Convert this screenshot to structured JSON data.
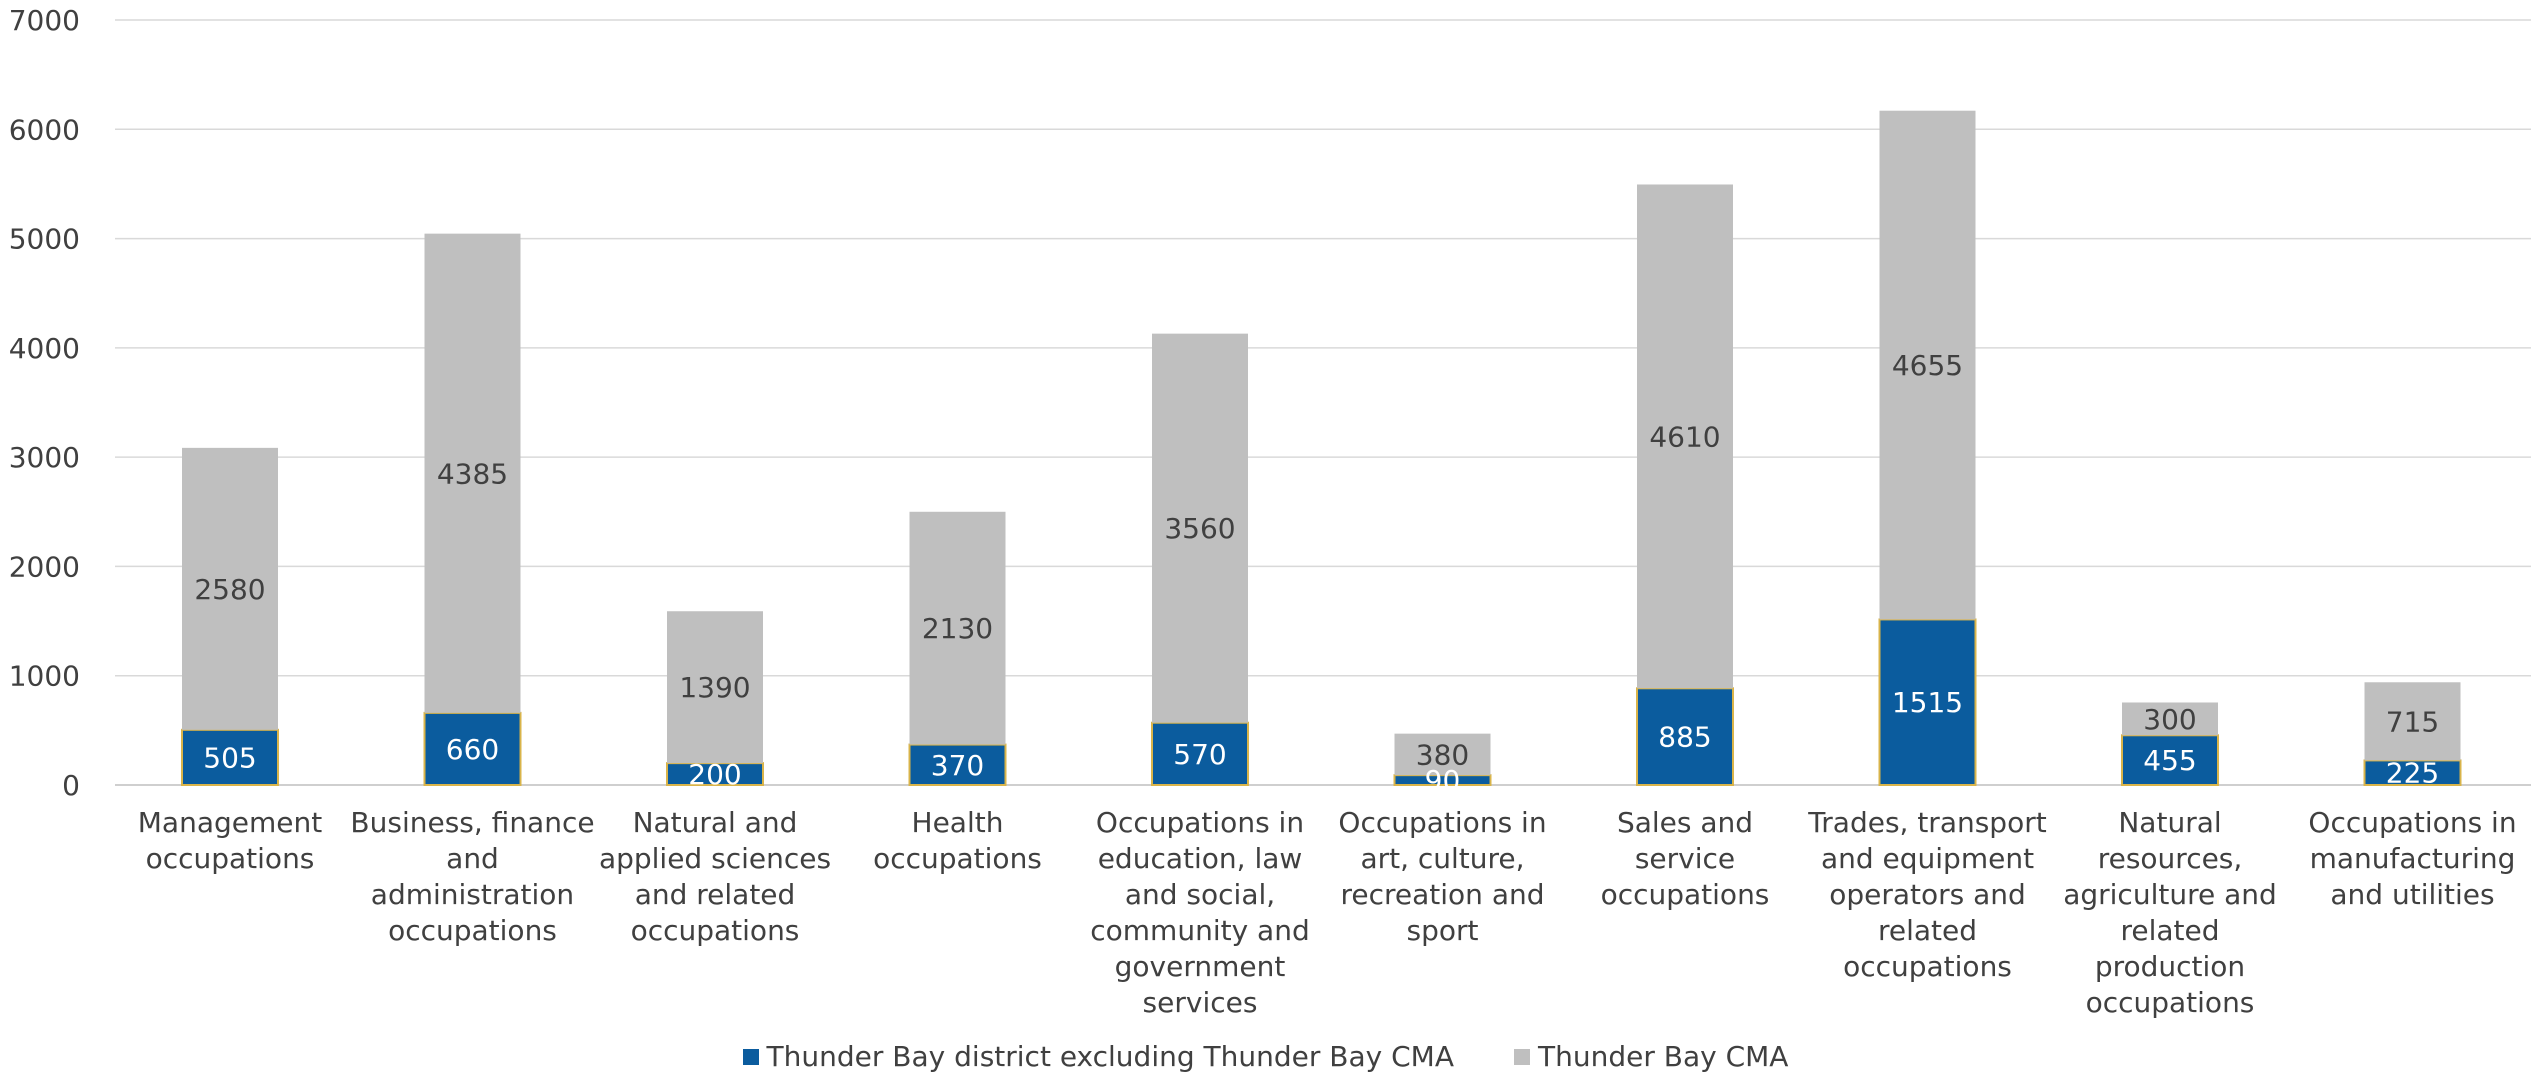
{
  "chart_data": {
    "type": "bar",
    "stacked": true,
    "categories": [
      [
        "Management",
        "occupations"
      ],
      [
        "Business, finance",
        "and",
        "administration",
        "occupations"
      ],
      [
        "Natural and",
        "applied sciences",
        "and related",
        "occupations"
      ],
      [
        "Health",
        "occupations"
      ],
      [
        "Occupations in",
        "education, law",
        "and social,",
        "community and",
        "government",
        "services"
      ],
      [
        "Occupations in",
        "art, culture,",
        "recreation and",
        "sport"
      ],
      [
        "Sales and",
        "service",
        "occupations"
      ],
      [
        "Trades, transport",
        "and equipment",
        "operators and",
        "related",
        "occupations"
      ],
      [
        "Natural",
        "resources,",
        "agriculture and",
        "related",
        "production",
        "occupations"
      ],
      [
        "Occupations in",
        "manufacturing",
        "and utilities"
      ]
    ],
    "series": [
      {
        "name": "Thunder Bay district excluding Thunder Bay CMA",
        "color": "#0B5C9E",
        "values": [
          505,
          660,
          200,
          370,
          570,
          90,
          885,
          1515,
          455,
          225
        ]
      },
      {
        "name": "Thunder Bay CMA",
        "color": "#BFBFBF",
        "values": [
          2580,
          4385,
          1390,
          2130,
          3560,
          380,
          4610,
          4655,
          300,
          715
        ]
      }
    ],
    "ylim": [
      0,
      7000
    ],
    "yticks": [
      "0",
      "1000",
      "2000",
      "3000",
      "4000",
      "5000",
      "6000",
      "7000"
    ],
    "grid": true,
    "legend_position": "bottom"
  }
}
